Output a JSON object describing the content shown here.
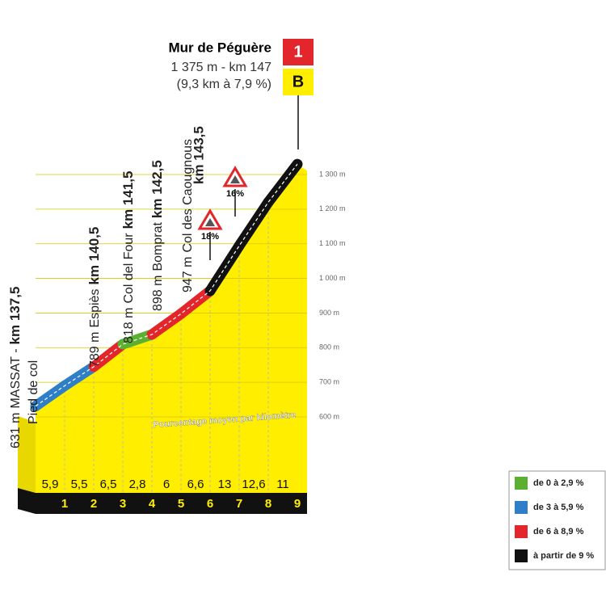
{
  "summit": {
    "name": "Mur de Péguère",
    "detail": "1 375 m - km 147",
    "stats": "(9,3 km à 7,9 %)",
    "badges": [
      "1",
      "B"
    ]
  },
  "waypoints": [
    {
      "altitude": {
        "value": 631,
        "label": "631 m"
      },
      "place": "MASSAT -",
      "km": "km 137,5",
      "note": "Pied de col"
    },
    {
      "altitude": {
        "value": 789,
        "label": "789 m"
      },
      "place": "Espiès",
      "km": "km 140,5"
    },
    {
      "altitude": {
        "value": 818,
        "label": "818 m"
      },
      "place": "Col del Four",
      "km": "km 141,5"
    },
    {
      "altitude": {
        "value": 898,
        "label": "898 m"
      },
      "place": "Bomprat",
      "km": "km 142,5"
    },
    {
      "altitude": {
        "value": 947,
        "label": "947 m"
      },
      "place": "Col des Caougnous",
      "km": "km 143,5"
    }
  ],
  "altitude_axis": {
    "ylim": [
      600,
      1300
    ],
    "ticks": [
      {
        "value": 600,
        "label": "600 m"
      },
      {
        "value": 700,
        "label": "700 m"
      },
      {
        "value": 800,
        "label": "800 m"
      },
      {
        "value": 900,
        "label": "900 m"
      },
      {
        "value": 1000,
        "label": "1 000 m"
      },
      {
        "value": 1100,
        "label": "1 100 m"
      },
      {
        "value": 1200,
        "label": "1 200 m"
      },
      {
        "value": 1300,
        "label": "1 300 m"
      }
    ]
  },
  "gradient_caption": "Pourcentage moyen par kilomètre",
  "gradients": {
    "values": [
      5.9,
      5.5,
      6.5,
      2.8,
      6,
      6.6,
      13,
      12.6,
      11
    ],
    "value_labels": [
      "5,9",
      "5,5",
      "6,5",
      "2,8",
      "6",
      "6,6",
      "13",
      "12,6",
      "11"
    ],
    "colors": [
      "#2f7fc8",
      "#2f7fc8",
      "#e3262b",
      "#5cb031",
      "#e3262b",
      "#e3262b",
      "#111111",
      "#111111",
      "#111111"
    ]
  },
  "km_markers": [
    "1",
    "2",
    "3",
    "4",
    "5",
    "6",
    "7",
    "8",
    "9"
  ],
  "steep_signs": [
    "18%",
    "16%"
  ],
  "legend": [
    {
      "label": "de 0 à 2,9 %",
      "color": "#5cb031"
    },
    {
      "label": "de 3 à 5,9 %",
      "color": "#2f7fc8"
    },
    {
      "label": "de 6 à 8,9 %",
      "color": "#e3262b"
    },
    {
      "label": "à partir de 9 %",
      "color": "#111111"
    }
  ]
}
